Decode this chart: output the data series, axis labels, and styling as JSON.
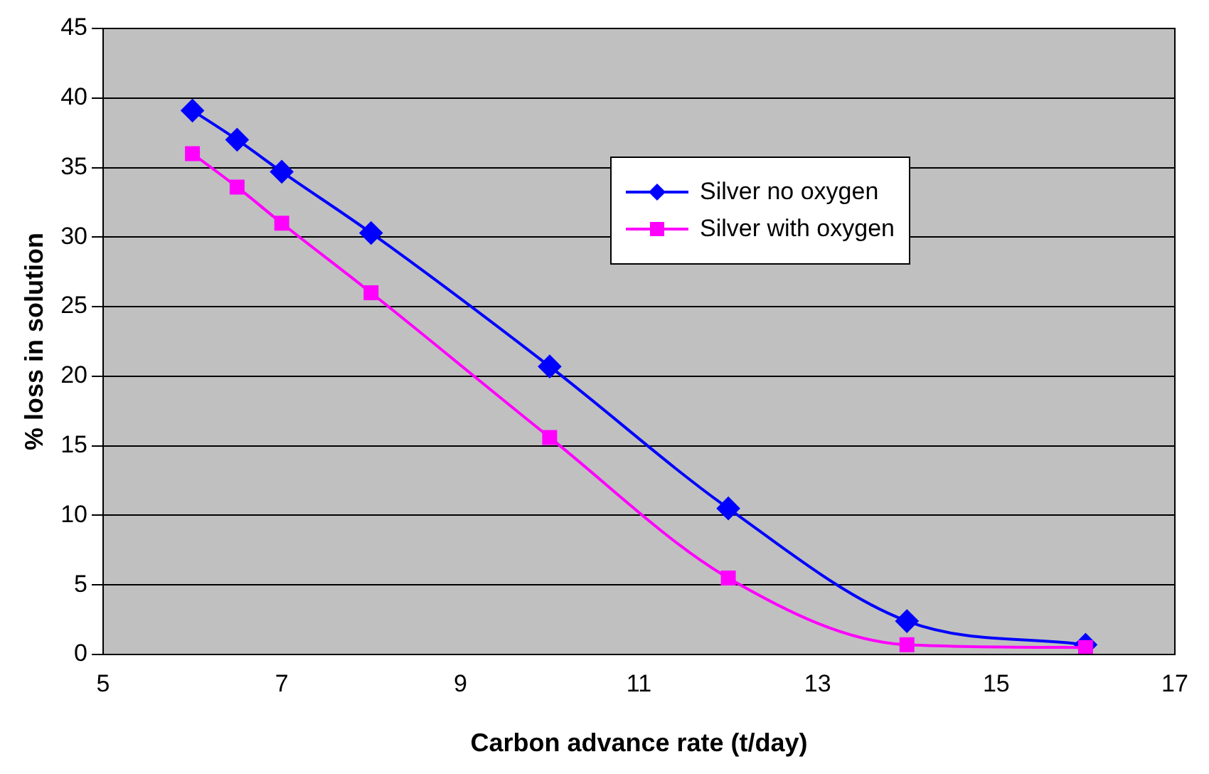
{
  "chart_data": {
    "type": "line",
    "xlabel": "Carbon advance rate (t/day)",
    "ylabel": "% loss in solution",
    "xlim": [
      5,
      17
    ],
    "xticks": [
      5,
      7,
      9,
      11,
      13,
      15,
      17
    ],
    "ylim": [
      0,
      45
    ],
    "yticks": [
      0,
      5,
      10,
      15,
      20,
      25,
      30,
      35,
      40,
      45
    ],
    "grid": "y",
    "legend": "top right",
    "line_style": "solid",
    "series": [
      {
        "name": "Silver no oxygen",
        "color": "#0000ff",
        "marker": "diamond",
        "x": [
          6,
          6.5,
          7,
          8,
          10,
          12,
          14,
          16
        ],
        "values": [
          39.1,
          37,
          34.7,
          30.3,
          20.7,
          10.5,
          2.4,
          0.7
        ]
      },
      {
        "name": "Silver with oxygen",
        "color": "#ff00ff",
        "marker": "square",
        "x": [
          6,
          6.5,
          7,
          8,
          10,
          12,
          14,
          16
        ],
        "values": [
          36,
          33.6,
          31,
          26,
          15.6,
          5.5,
          0.7,
          0.5
        ]
      }
    ]
  }
}
